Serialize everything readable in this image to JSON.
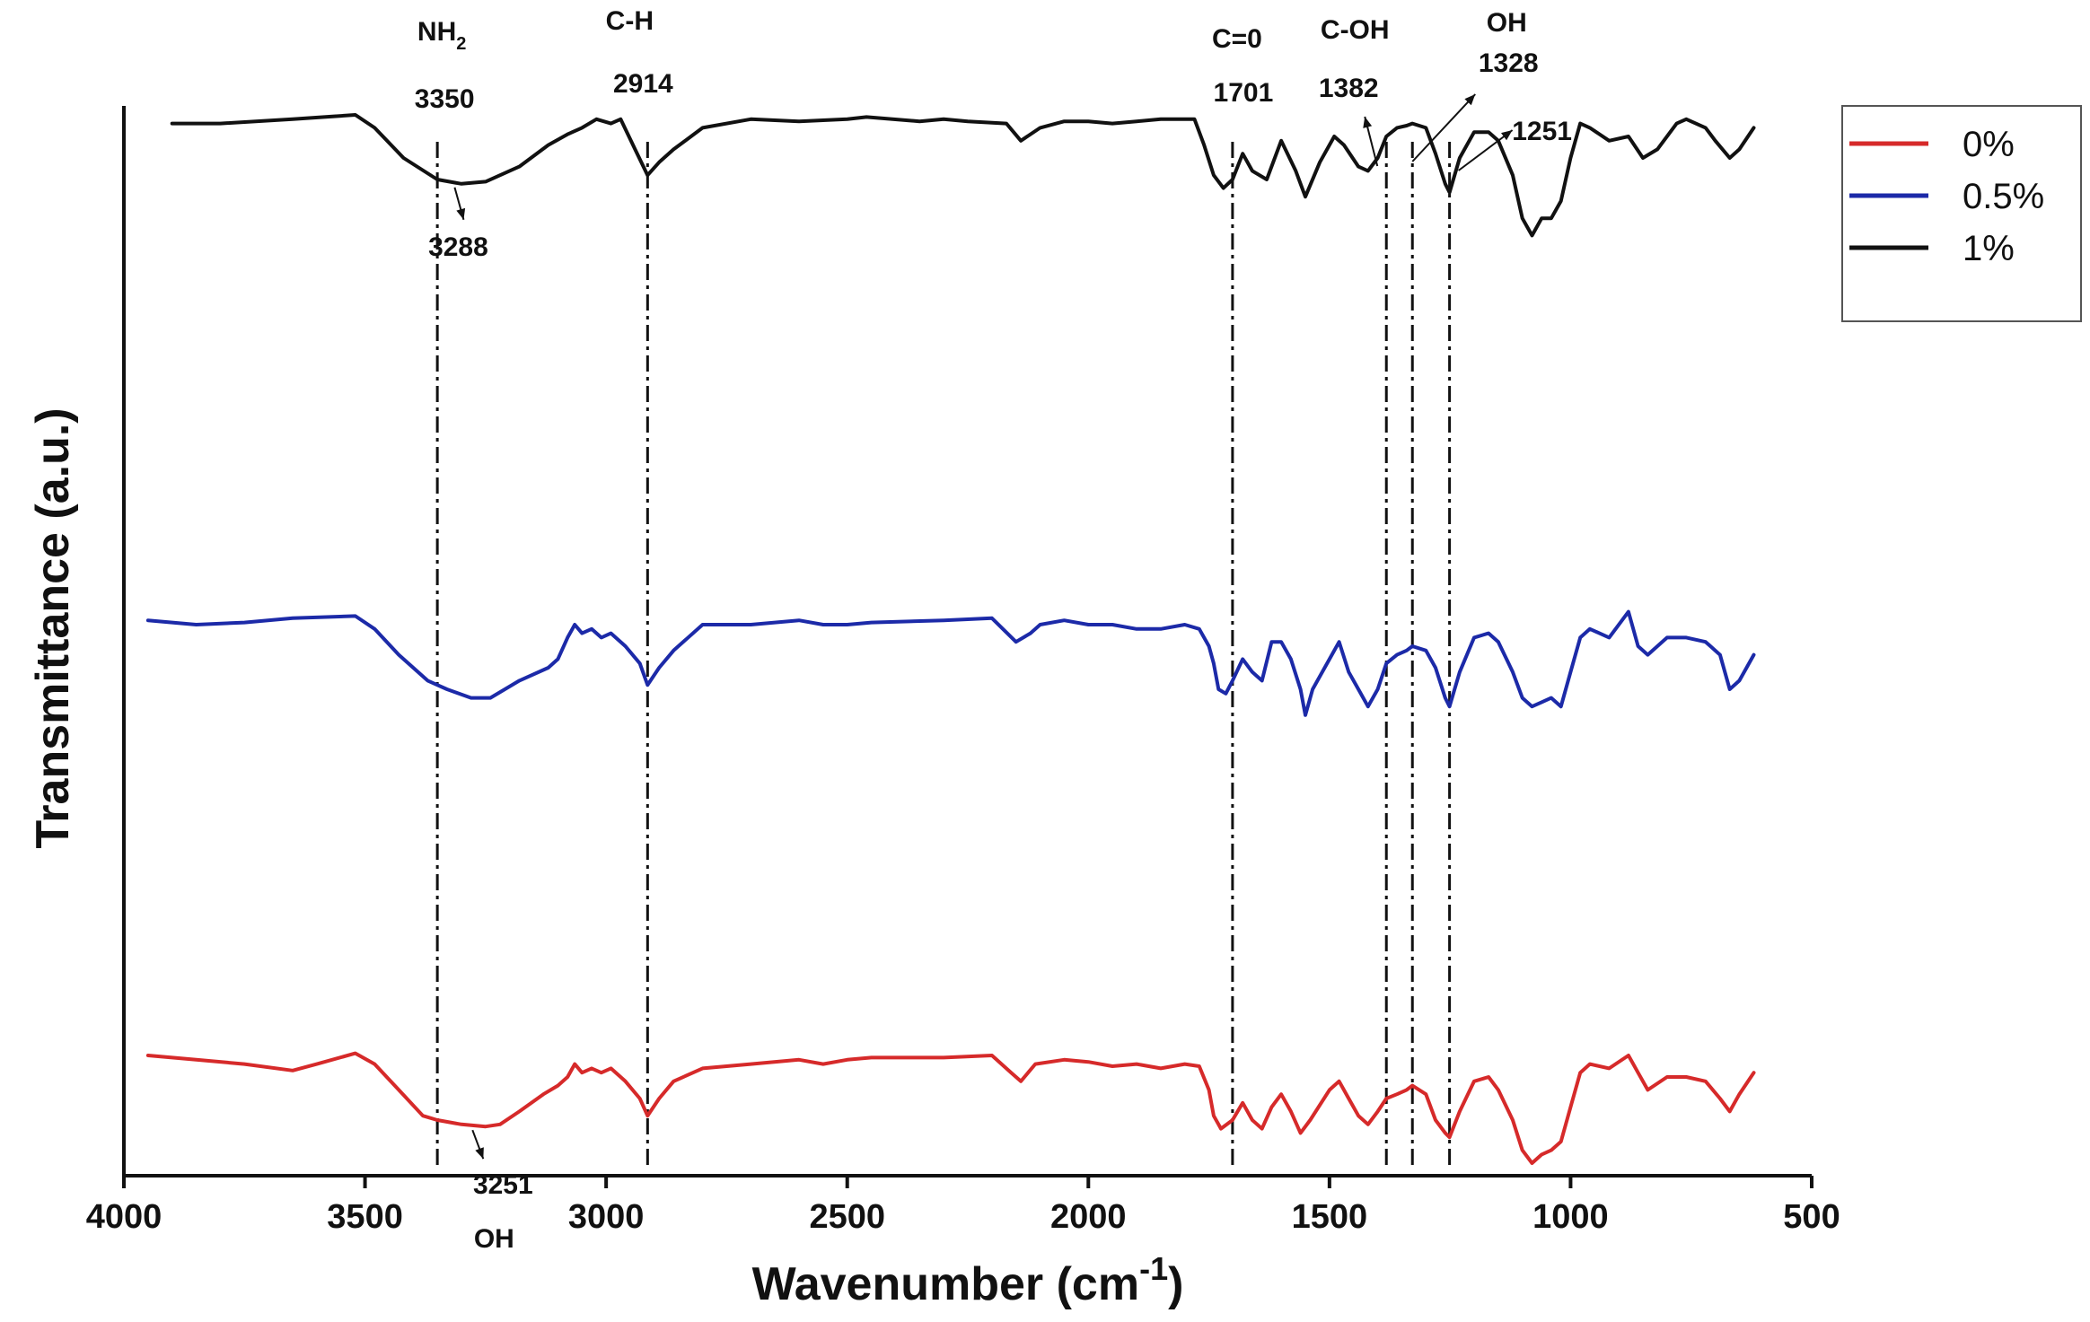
{
  "chart_data": {
    "type": "line",
    "title": "",
    "xlabel": "Wavenumber (cm",
    "xlabel_sup": "-1",
    "xlabel_close": ")",
    "ylabel": "Transmittance (a.u.)",
    "xlim": [
      4000,
      500
    ],
    "ylim": [
      0,
      100
    ],
    "x_ticks": [
      4000,
      3500,
      3000,
      2500,
      2000,
      1500,
      1000,
      500
    ],
    "legend_position": "top-right",
    "series": [
      {
        "name": "1%",
        "color": "#111111",
        "points": [
          [
            3900,
            88
          ],
          [
            3800,
            88
          ],
          [
            3650,
            89
          ],
          [
            3520,
            90
          ],
          [
            3480,
            87
          ],
          [
            3420,
            80
          ],
          [
            3350,
            75
          ],
          [
            3300,
            74
          ],
          [
            3250,
            74.5
          ],
          [
            3180,
            78
          ],
          [
            3120,
            83
          ],
          [
            3080,
            85.5
          ],
          [
            3050,
            87
          ],
          [
            3020,
            89
          ],
          [
            2990,
            88
          ],
          [
            2970,
            89
          ],
          [
            2940,
            82
          ],
          [
            2914,
            76
          ],
          [
            2890,
            79
          ],
          [
            2860,
            82
          ],
          [
            2800,
            87
          ],
          [
            2700,
            89
          ],
          [
            2600,
            88.5
          ],
          [
            2500,
            89
          ],
          [
            2460,
            89.5
          ],
          [
            2350,
            88.5
          ],
          [
            2300,
            89
          ],
          [
            2250,
            88.5
          ],
          [
            2170,
            88
          ],
          [
            2140,
            84
          ],
          [
            2100,
            87
          ],
          [
            2050,
            88.5
          ],
          [
            2000,
            88.5
          ],
          [
            1950,
            88
          ],
          [
            1900,
            88.5
          ],
          [
            1850,
            89
          ],
          [
            1780,
            89
          ],
          [
            1760,
            83
          ],
          [
            1740,
            76
          ],
          [
            1720,
            73
          ],
          [
            1701,
            75
          ],
          [
            1680,
            81
          ],
          [
            1660,
            77
          ],
          [
            1630,
            75
          ],
          [
            1600,
            84
          ],
          [
            1570,
            77
          ],
          [
            1550,
            71
          ],
          [
            1520,
            79
          ],
          [
            1490,
            85
          ],
          [
            1470,
            83
          ],
          [
            1440,
            78
          ],
          [
            1420,
            77
          ],
          [
            1400,
            80
          ],
          [
            1382,
            85
          ],
          [
            1360,
            87
          ],
          [
            1340,
            87.5
          ],
          [
            1328,
            88
          ],
          [
            1300,
            87
          ],
          [
            1280,
            81
          ],
          [
            1260,
            74
          ],
          [
            1251,
            72
          ],
          [
            1230,
            80
          ],
          [
            1200,
            86
          ],
          [
            1170,
            86
          ],
          [
            1150,
            84
          ],
          [
            1120,
            76
          ],
          [
            1100,
            66
          ],
          [
            1080,
            62
          ],
          [
            1060,
            66
          ],
          [
            1040,
            66
          ],
          [
            1020,
            70
          ],
          [
            1000,
            80
          ],
          [
            980,
            88
          ],
          [
            960,
            87
          ],
          [
            920,
            84
          ],
          [
            880,
            85
          ],
          [
            850,
            80
          ],
          [
            820,
            82
          ],
          [
            780,
            88
          ],
          [
            760,
            89
          ],
          [
            720,
            87
          ],
          [
            700,
            84
          ],
          [
            670,
            80
          ],
          [
            650,
            82
          ],
          [
            620,
            87
          ]
        ]
      },
      {
        "name": "0.5%",
        "color": "#1c2aa8",
        "points": [
          [
            3950,
            56
          ],
          [
            3850,
            55
          ],
          [
            3750,
            55.5
          ],
          [
            3650,
            56.5
          ],
          [
            3520,
            57
          ],
          [
            3480,
            54
          ],
          [
            3430,
            48
          ],
          [
            3370,
            42
          ],
          [
            3330,
            40
          ],
          [
            3280,
            38
          ],
          [
            3240,
            38
          ],
          [
            3180,
            42
          ],
          [
            3120,
            45
          ],
          [
            3100,
            47
          ],
          [
            3080,
            52
          ],
          [
            3065,
            55
          ],
          [
            3050,
            53
          ],
          [
            3030,
            54
          ],
          [
            3010,
            52
          ],
          [
            2990,
            53
          ],
          [
            2960,
            50
          ],
          [
            2930,
            46
          ],
          [
            2914,
            41
          ],
          [
            2890,
            45
          ],
          [
            2860,
            49
          ],
          [
            2800,
            55
          ],
          [
            2700,
            55
          ],
          [
            2600,
            56
          ],
          [
            2550,
            55
          ],
          [
            2500,
            55
          ],
          [
            2450,
            55.5
          ],
          [
            2300,
            56
          ],
          [
            2200,
            56.5
          ],
          [
            2150,
            51
          ],
          [
            2120,
            53
          ],
          [
            2100,
            55
          ],
          [
            2050,
            56
          ],
          [
            2000,
            55
          ],
          [
            1950,
            55
          ],
          [
            1900,
            54
          ],
          [
            1850,
            54
          ],
          [
            1800,
            55
          ],
          [
            1770,
            54
          ],
          [
            1750,
            50
          ],
          [
            1740,
            46
          ],
          [
            1730,
            40
          ],
          [
            1715,
            39
          ],
          [
            1701,
            42
          ],
          [
            1680,
            47
          ],
          [
            1660,
            44
          ],
          [
            1640,
            42
          ],
          [
            1620,
            51
          ],
          [
            1600,
            51
          ],
          [
            1580,
            47
          ],
          [
            1560,
            40
          ],
          [
            1550,
            34
          ],
          [
            1535,
            40
          ],
          [
            1500,
            47
          ],
          [
            1480,
            51
          ],
          [
            1460,
            44
          ],
          [
            1440,
            40
          ],
          [
            1420,
            36
          ],
          [
            1400,
            40
          ],
          [
            1382,
            46
          ],
          [
            1360,
            48
          ],
          [
            1340,
            49
          ],
          [
            1328,
            50
          ],
          [
            1300,
            49
          ],
          [
            1280,
            45
          ],
          [
            1260,
            38
          ],
          [
            1251,
            36
          ],
          [
            1230,
            44
          ],
          [
            1200,
            52
          ],
          [
            1170,
            53
          ],
          [
            1150,
            51
          ],
          [
            1120,
            44
          ],
          [
            1100,
            38
          ],
          [
            1080,
            36
          ],
          [
            1060,
            37
          ],
          [
            1040,
            38
          ],
          [
            1020,
            36
          ],
          [
            1000,
            44
          ],
          [
            980,
            52
          ],
          [
            960,
            54
          ],
          [
            920,
            52
          ],
          [
            880,
            58
          ],
          [
            860,
            50
          ],
          [
            840,
            48
          ],
          [
            800,
            52
          ],
          [
            760,
            52
          ],
          [
            720,
            51
          ],
          [
            690,
            48
          ],
          [
            670,
            40
          ],
          [
            650,
            42
          ],
          [
            620,
            48
          ]
        ]
      },
      {
        "name": "0%",
        "color": "#d62a2a",
        "points": [
          [
            3950,
            30
          ],
          [
            3850,
            29
          ],
          [
            3750,
            28
          ],
          [
            3650,
            26.5
          ],
          [
            3600,
            28
          ],
          [
            3520,
            30.5
          ],
          [
            3480,
            28
          ],
          [
            3430,
            22
          ],
          [
            3380,
            16
          ],
          [
            3350,
            15
          ],
          [
            3300,
            14
          ],
          [
            3250,
            13.5
          ],
          [
            3220,
            14
          ],
          [
            3180,
            17
          ],
          [
            3130,
            21
          ],
          [
            3100,
            23
          ],
          [
            3080,
            25
          ],
          [
            3065,
            28
          ],
          [
            3050,
            26
          ],
          [
            3030,
            27
          ],
          [
            3010,
            26
          ],
          [
            2990,
            27
          ],
          [
            2960,
            24
          ],
          [
            2930,
            20
          ],
          [
            2914,
            16
          ],
          [
            2890,
            20
          ],
          [
            2860,
            24
          ],
          [
            2800,
            27
          ],
          [
            2700,
            28
          ],
          [
            2600,
            29
          ],
          [
            2550,
            28
          ],
          [
            2500,
            29
          ],
          [
            2450,
            29.5
          ],
          [
            2300,
            29.5
          ],
          [
            2200,
            30
          ],
          [
            2160,
            26
          ],
          [
            2140,
            24
          ],
          [
            2110,
            28
          ],
          [
            2050,
            29
          ],
          [
            2000,
            28.5
          ],
          [
            1950,
            27.5
          ],
          [
            1900,
            28
          ],
          [
            1850,
            27
          ],
          [
            1800,
            28
          ],
          [
            1770,
            27.5
          ],
          [
            1750,
            22
          ],
          [
            1740,
            16
          ],
          [
            1725,
            13
          ],
          [
            1701,
            15
          ],
          [
            1680,
            19
          ],
          [
            1660,
            15
          ],
          [
            1640,
            13
          ],
          [
            1620,
            18
          ],
          [
            1600,
            21
          ],
          [
            1580,
            17
          ],
          [
            1560,
            12
          ],
          [
            1540,
            15
          ],
          [
            1500,
            22
          ],
          [
            1480,
            24
          ],
          [
            1460,
            20
          ],
          [
            1440,
            16
          ],
          [
            1420,
            14
          ],
          [
            1400,
            17
          ],
          [
            1382,
            20
          ],
          [
            1360,
            21
          ],
          [
            1340,
            22
          ],
          [
            1328,
            23
          ],
          [
            1300,
            21
          ],
          [
            1280,
            15
          ],
          [
            1260,
            12
          ],
          [
            1251,
            11
          ],
          [
            1230,
            17
          ],
          [
            1200,
            24
          ],
          [
            1170,
            25
          ],
          [
            1150,
            22
          ],
          [
            1120,
            15
          ],
          [
            1100,
            8
          ],
          [
            1080,
            5
          ],
          [
            1060,
            7
          ],
          [
            1040,
            8
          ],
          [
            1020,
            10
          ],
          [
            1000,
            18
          ],
          [
            980,
            26
          ],
          [
            960,
            28
          ],
          [
            920,
            27
          ],
          [
            880,
            30
          ],
          [
            860,
            26
          ],
          [
            840,
            22
          ],
          [
            800,
            25
          ],
          [
            760,
            25
          ],
          [
            720,
            24
          ],
          [
            690,
            20
          ],
          [
            670,
            17
          ],
          [
            650,
            21
          ],
          [
            620,
            26
          ]
        ]
      }
    ],
    "reference_lines": [
      {
        "x": 3350,
        "label_top": "NH",
        "label_sub": "2",
        "label_value": "3350"
      },
      {
        "x": 2914,
        "label_top": "C-H",
        "label_value": "2914"
      },
      {
        "x": 1701,
        "label_top": "C=0",
        "label_value": "1701"
      },
      {
        "x": 1382,
        "label_top": "C-OH",
        "label_value": "1382"
      },
      {
        "x": 1328,
        "label_top": "OH",
        "label_value": "1328"
      },
      {
        "x": 1251,
        "label_top": "",
        "label_value": "1251"
      }
    ],
    "annotations": [
      {
        "text": "3288",
        "x": 3288,
        "series": "1%"
      },
      {
        "text": "3251",
        "x": 3251,
        "series": "0%"
      },
      {
        "text": "OH",
        "x": 3251,
        "series": "0%"
      }
    ]
  }
}
